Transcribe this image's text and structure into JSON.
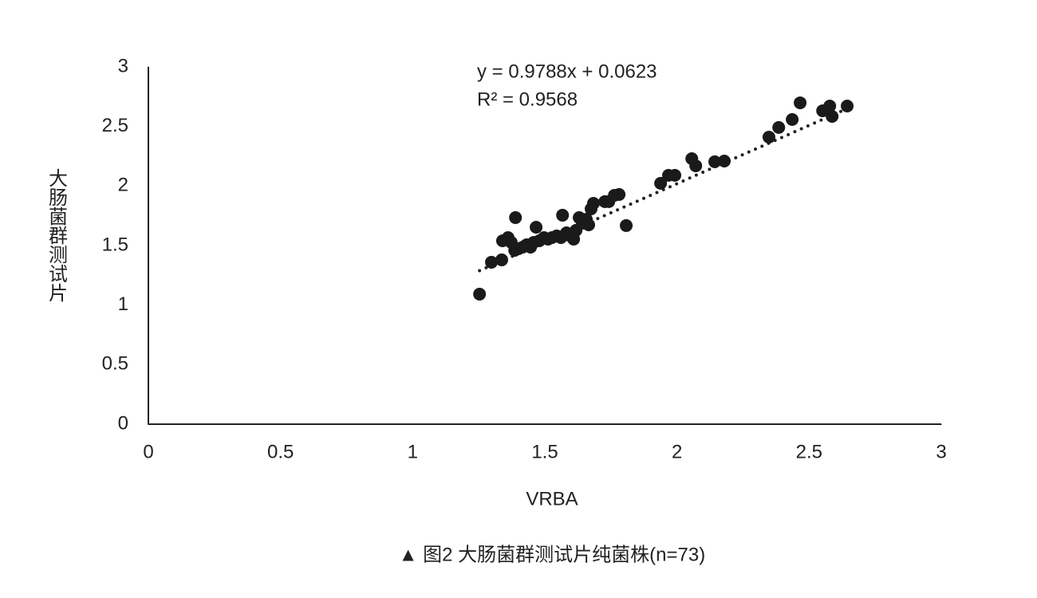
{
  "chart_data": {
    "type": "scatter",
    "equation": "y = 0.9788x + 0.0623",
    "r_squared": "R² = 0.9568",
    "x_label": "VRBA",
    "y_label": "大肠菌群测试片",
    "caption": "▲ 图2 大肠菌群测试片纯菌株(n=73)",
    "trendline": {
      "slope": 0.9788,
      "intercept": 0.0623,
      "style": "dotted"
    },
    "color": "#1a1a1a",
    "xlim": [
      0,
      3
    ],
    "xticks": [
      0,
      0.5,
      1,
      1.5,
      2,
      2.5,
      3
    ],
    "ylim": [
      0,
      3
    ],
    "yticks": [
      0,
      0.5,
      1,
      1.5,
      2,
      2.5,
      3
    ],
    "grid": false,
    "x": [
      1.253,
      1.298,
      1.337,
      1.34,
      1.361,
      1.373,
      1.386,
      1.389,
      1.401,
      1.416,
      1.431,
      1.446,
      1.458,
      1.467,
      1.479,
      1.497,
      1.512,
      1.527,
      1.545,
      1.561,
      1.567,
      1.582,
      1.597,
      1.609,
      1.618,
      1.63,
      1.642,
      1.657,
      1.666,
      1.675,
      1.684,
      1.727,
      1.742,
      1.763,
      1.781,
      1.808,
      1.938,
      1.968,
      1.992,
      2.056,
      2.071,
      2.143,
      2.179,
      2.348,
      2.385,
      2.436,
      2.466,
      2.551,
      2.578,
      2.587,
      2.644
    ],
    "values": [
      1.092,
      1.36,
      1.38,
      1.54,
      1.567,
      1.527,
      1.46,
      1.735,
      1.474,
      1.487,
      1.507,
      1.487,
      1.527,
      1.654,
      1.54,
      1.567,
      1.554,
      1.567,
      1.581,
      1.567,
      1.755,
      1.607,
      1.581,
      1.554,
      1.628,
      1.735,
      1.688,
      1.721,
      1.674,
      1.808,
      1.855,
      1.869,
      1.869,
      1.922,
      1.929,
      1.668,
      2.023,
      2.09,
      2.09,
      2.23,
      2.17,
      2.204,
      2.21,
      2.411,
      2.492,
      2.559,
      2.699,
      2.632,
      2.672,
      2.585,
      2.672
    ]
  }
}
